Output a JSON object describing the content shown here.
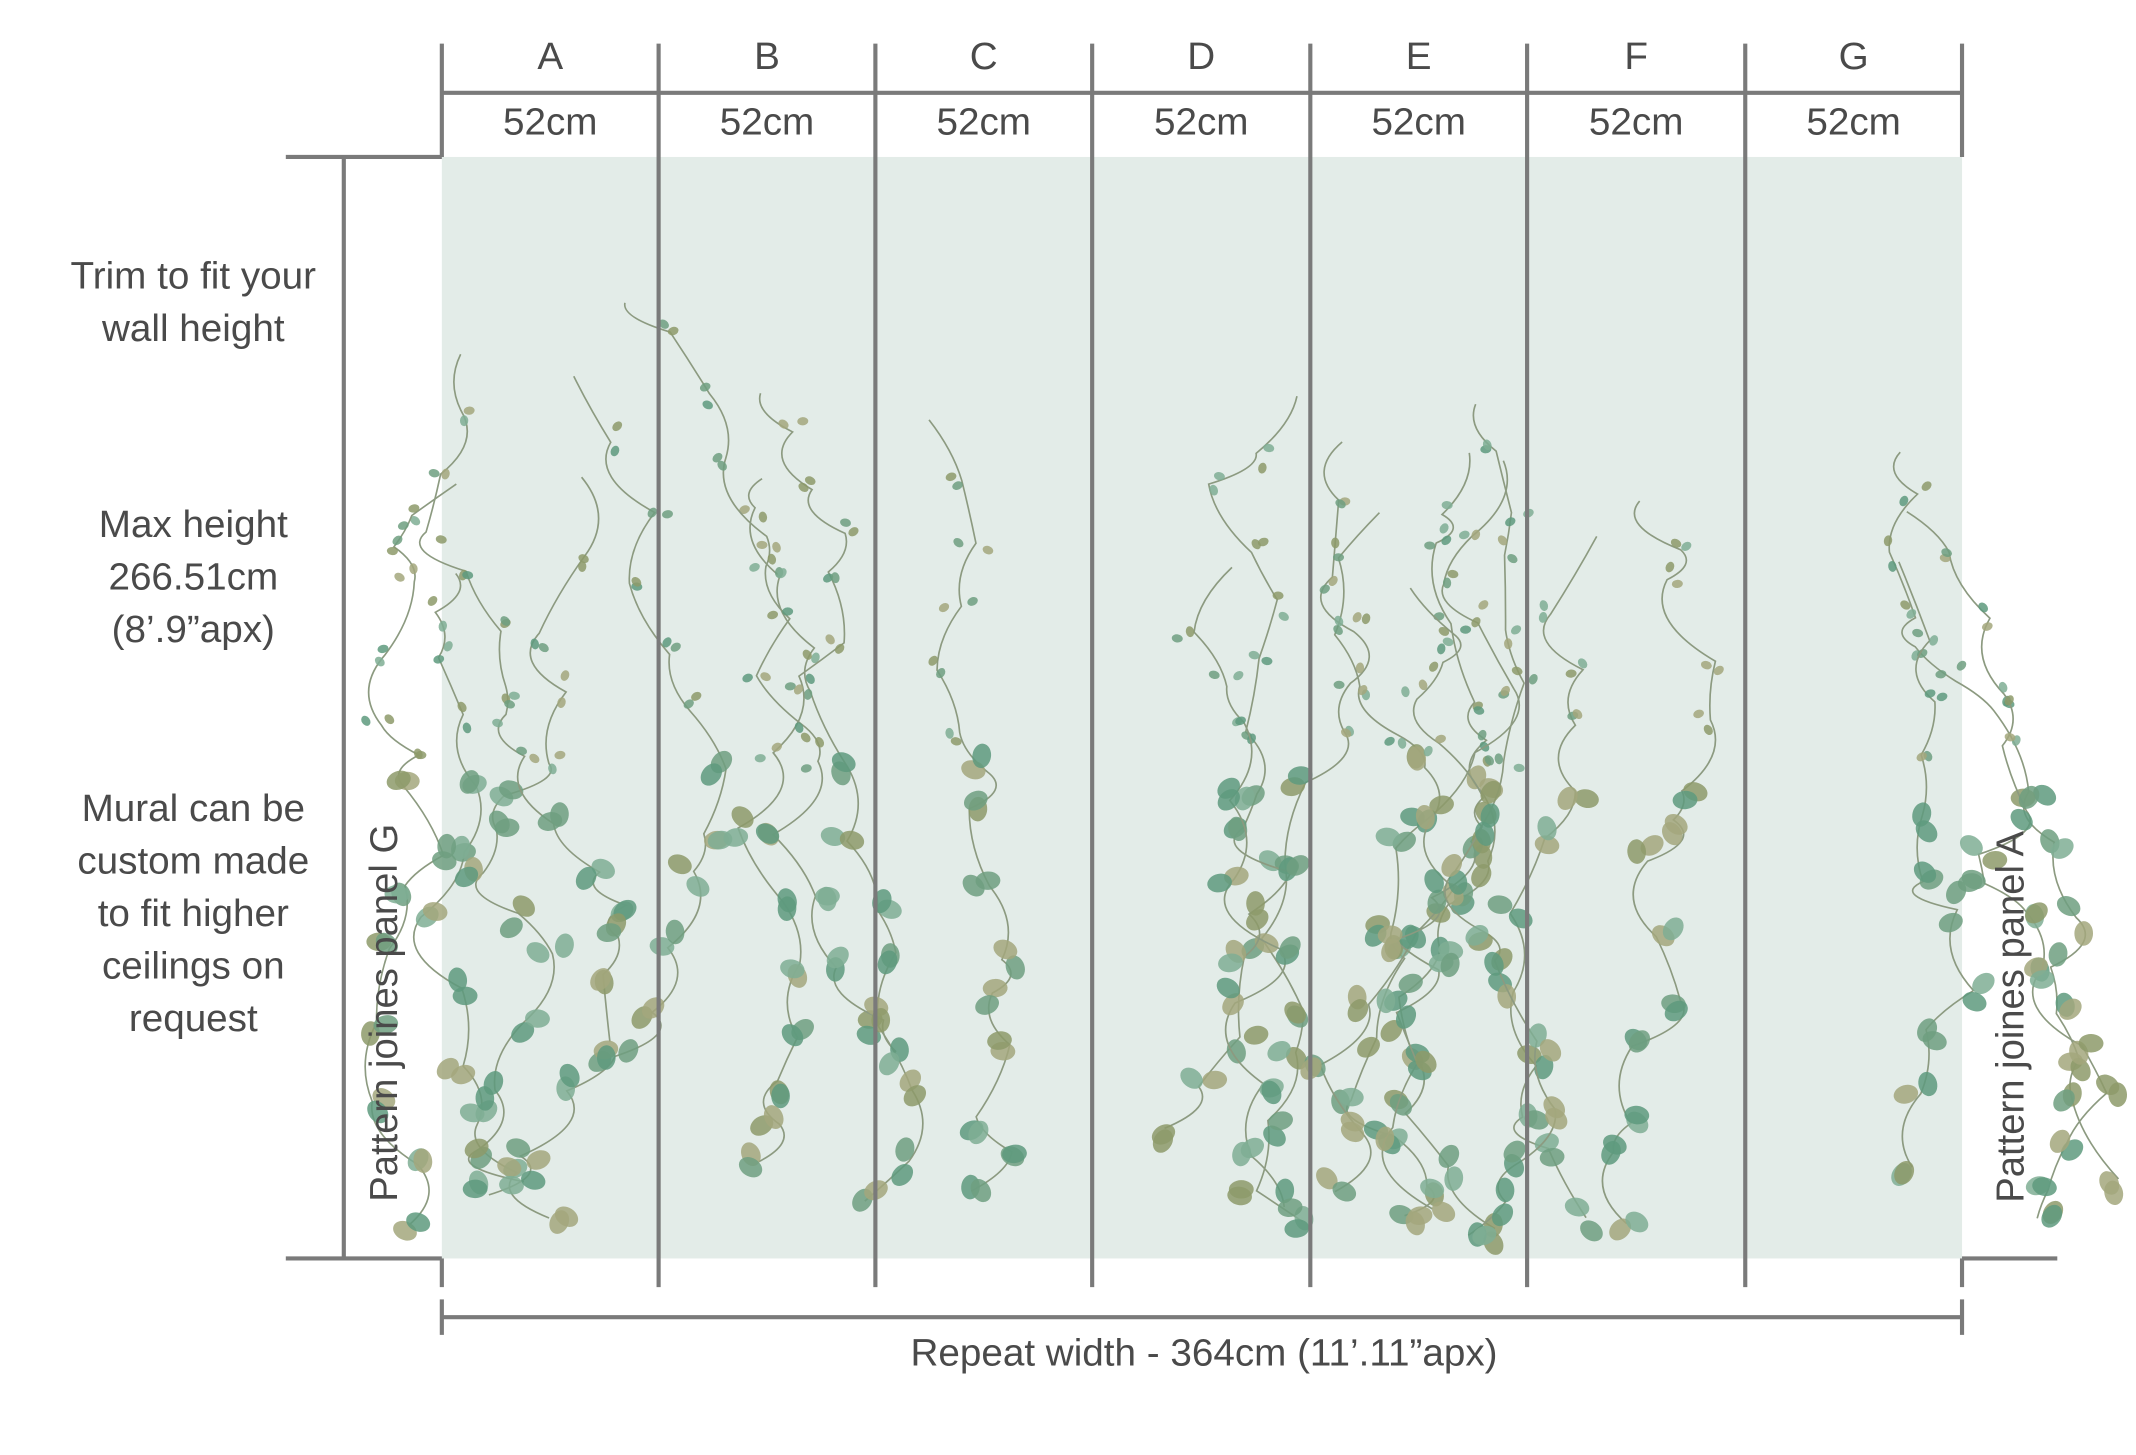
{
  "panels": [
    {
      "label": "A",
      "width": "52cm"
    },
    {
      "label": "B",
      "width": "52cm"
    },
    {
      "label": "C",
      "width": "52cm"
    },
    {
      "label": "D",
      "width": "52cm"
    },
    {
      "label": "E",
      "width": "52cm"
    },
    {
      "label": "F",
      "width": "52cm"
    },
    {
      "label": "G",
      "width": "52cm"
    }
  ],
  "notes": [
    {
      "lines": [
        "Trim to fit your",
        "wall height"
      ]
    },
    {
      "lines": [
        "Max height",
        "266.51cm",
        "(8’.9”apx)"
      ]
    },
    {
      "lines": [
        "Mural can be",
        "custom made",
        "to fit higher",
        "ceilings on",
        "request"
      ]
    }
  ],
  "left_join": "Pattern joines panel G",
  "right_join": "Pattern joines panel A",
  "repeat_width": "Repeat width - 364cm  (11’.11”apx)"
}
